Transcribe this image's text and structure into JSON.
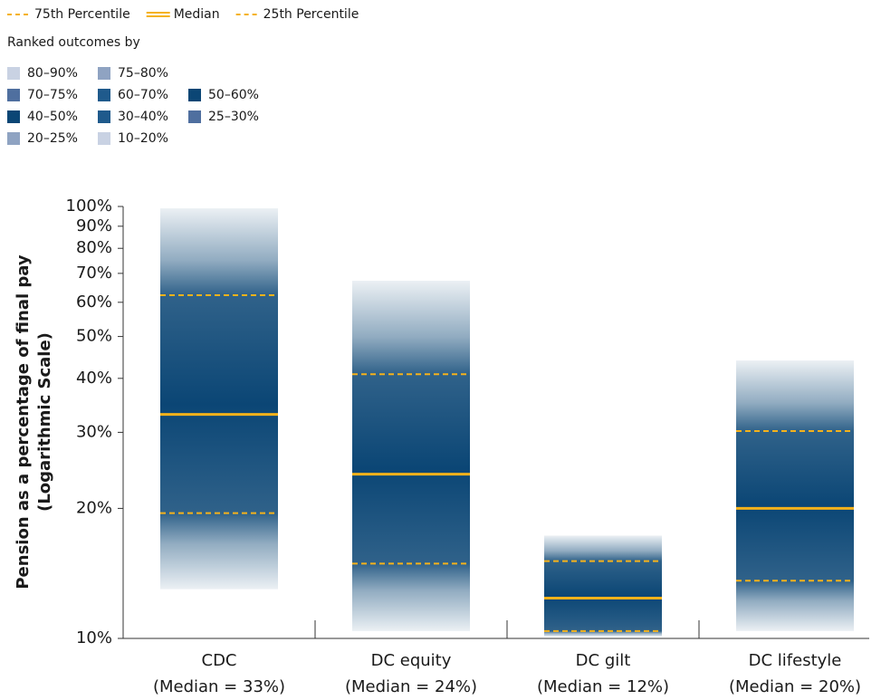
{
  "chart_data": {
    "type": "fan",
    "legend_title": "Ranked outcomes by",
    "y_label": [
      "Pension as a percentage of final pay",
      "(Logarithmic Scale)"
    ],
    "yscale": "log",
    "ylim": [
      10,
      100
    ],
    "yticks": [
      {
        "value": 10,
        "label": "10%"
      },
      {
        "value": 20,
        "label": "20%"
      },
      {
        "value": 30,
        "label": "30%"
      },
      {
        "value": 40,
        "label": "40%"
      },
      {
        "value": 50,
        "label": "50%"
      },
      {
        "value": 60,
        "label": "60%"
      },
      {
        "value": 70,
        "label": "70%"
      },
      {
        "value": 80,
        "label": "80%"
      },
      {
        "value": 90,
        "label": "90%"
      },
      {
        "value": 100,
        "label": "100%"
      }
    ],
    "categories": [
      "CDC",
      "DC equity",
      "DC gilt",
      "DC lifestyle"
    ],
    "category_notes": [
      "(Median = 33%)",
      "(Median = 24%)",
      "(Median = 12%)",
      "(Median = 20%)"
    ],
    "range": {
      "high": [
        99,
        67.3,
        17.3,
        44
      ],
      "low": [
        13,
        10.4,
        10.1,
        10.4
      ]
    },
    "band_color": "#0b4675",
    "series": [
      {
        "name": "75th Percentile",
        "color": "#f5b21b",
        "style": "dashed",
        "values": [
          62.3,
          40.9,
          15.1,
          30.2
        ]
      },
      {
        "name": "Median",
        "color": "#f5b21b",
        "style": "solid",
        "values": [
          33,
          24,
          12.4,
          20
        ]
      },
      {
        "name": "25th Percentile",
        "color": "#f5b21b",
        "style": "dashed",
        "values": [
          19.5,
          14.9,
          10.4,
          13.6
        ]
      }
    ],
    "bands": [
      {
        "label": "80–90%",
        "color": "#c9d2e3"
      },
      {
        "label": "75–80%",
        "color": "#8fa3c2"
      },
      {
        "label": "70–75%",
        "color": "#4f6f9f"
      },
      {
        "label": "60–70%",
        "color": "#1f5a8c"
      },
      {
        "label": "50–60%",
        "color": "#0b4675"
      },
      {
        "label": "40–50%",
        "color": "#0b4675"
      },
      {
        "label": "30–40%",
        "color": "#1f5a8c"
      },
      {
        "label": "25–30%",
        "color": "#4f6f9f"
      },
      {
        "label": "20–25%",
        "color": "#8fa3c2"
      },
      {
        "label": "10–20%",
        "color": "#c9d2e3"
      }
    ]
  }
}
